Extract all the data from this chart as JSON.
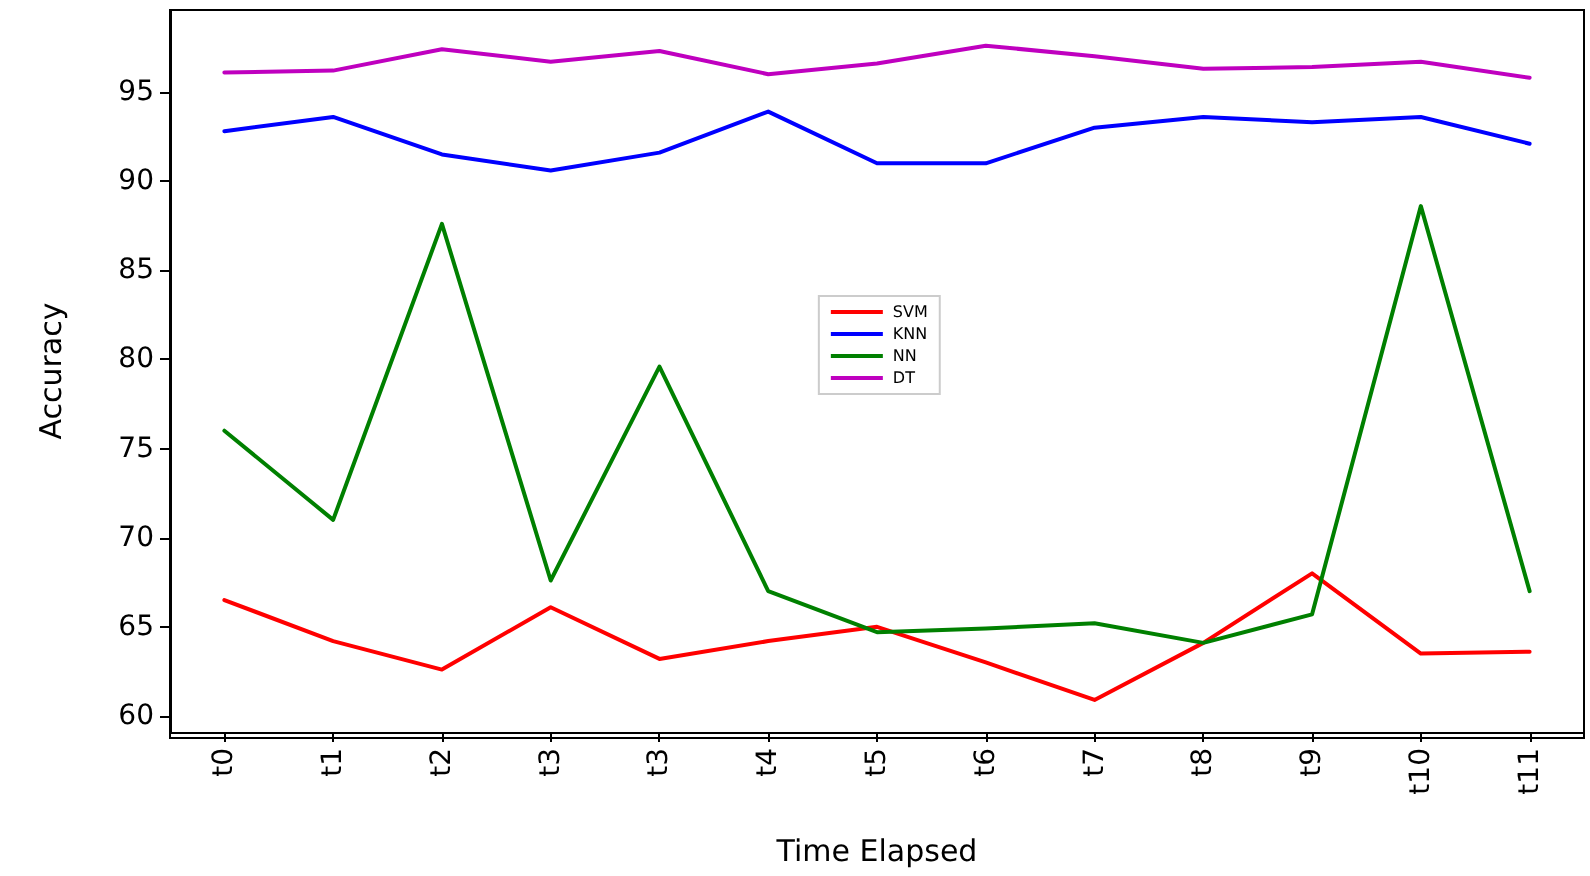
{
  "chart_data": {
    "type": "line",
    "xlabel": "Time Elapsed",
    "ylabel": "Accuracy",
    "categories": [
      "t0",
      "t1",
      "t2",
      "t3",
      "t3",
      "t4",
      "t5",
      "t6",
      "t7",
      "t8",
      "t9",
      "t10",
      "t11"
    ],
    "series": [
      {
        "name": "SVM",
        "color": "#ff0000",
        "values": [
          66.5,
          64.2,
          62.6,
          66.1,
          63.2,
          64.2,
          65.0,
          63.0,
          60.9,
          64.1,
          68.0,
          63.5,
          63.6
        ]
      },
      {
        "name": "KNN",
        "color": "#0000ff",
        "values": [
          92.8,
          93.6,
          91.5,
          90.6,
          91.6,
          93.9,
          91.0,
          91.0,
          93.0,
          93.6,
          93.3,
          93.6,
          92.1
        ]
      },
      {
        "name": "NN",
        "color": "#008000",
        "values": [
          76.0,
          71.0,
          87.6,
          67.6,
          79.6,
          67.0,
          64.7,
          64.9,
          65.2,
          64.1,
          65.7,
          88.6,
          67.0
        ]
      },
      {
        "name": "DT",
        "color": "#bf00bf",
        "values": [
          96.1,
          96.2,
          97.4,
          96.7,
          97.3,
          96.0,
          96.6,
          97.6,
          97.0,
          96.3,
          96.4,
          96.7,
          95.8
        ]
      }
    ],
    "ylim": [
      59.1,
      99.6
    ],
    "yticks": [
      60,
      65,
      70,
      75,
      80,
      85,
      90,
      95
    ],
    "grid": false,
    "legend": "center",
    "marker": "none",
    "line_style": "solid"
  }
}
